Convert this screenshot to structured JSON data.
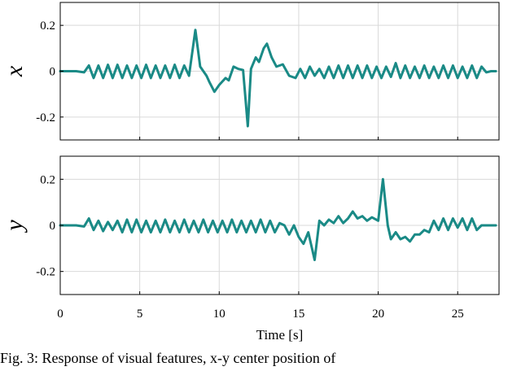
{
  "chart_data": [
    {
      "type": "line",
      "ylabel": "x",
      "xlabel": "",
      "xlim": [
        0,
        27.6
      ],
      "ylim": [
        -0.3,
        0.3
      ],
      "xticks": [
        0,
        5,
        10,
        15,
        20,
        25
      ],
      "yticks": [
        -0.2,
        0,
        0.2
      ],
      "ytick_labels": [
        "-0.2",
        "0",
        "0.2"
      ],
      "grid": true,
      "color": "#1a8a86",
      "series": [
        {
          "x": [
            0,
            1.0,
            1.5,
            1.8,
            2.1,
            2.4,
            2.7,
            3.0,
            3.3,
            3.6,
            3.9,
            4.2,
            4.5,
            4.8,
            5.1,
            5.4,
            5.7,
            6.0,
            6.3,
            6.6,
            6.9,
            7.2,
            7.5,
            7.8,
            8.1,
            8.5,
            8.8,
            9.2,
            9.4,
            9.7,
            10.0,
            10.4,
            10.6,
            10.9,
            11.2,
            11.5,
            11.8,
            12.0,
            12.3,
            12.5,
            12.8,
            13.0,
            13.3,
            13.6,
            14.0,
            14.4,
            14.8,
            15.1,
            15.4,
            15.7,
            16.0,
            16.3,
            16.6,
            16.9,
            17.2,
            17.5,
            17.8,
            18.1,
            18.4,
            18.7,
            19.0,
            19.3,
            19.6,
            19.9,
            20.2,
            20.5,
            20.8,
            21.1,
            21.4,
            21.7,
            22.0,
            22.3,
            22.6,
            22.9,
            23.2,
            23.5,
            23.8,
            24.1,
            24.4,
            24.7,
            25.0,
            25.3,
            25.6,
            25.9,
            26.2,
            26.5,
            26.8,
            27.1,
            27.4
          ],
          "y": [
            0,
            0,
            -0.005,
            0.025,
            -0.03,
            0.025,
            -0.03,
            0.028,
            -0.03,
            0.028,
            -0.03,
            0.025,
            -0.03,
            0.025,
            -0.03,
            0.028,
            -0.03,
            0.025,
            -0.03,
            0.025,
            -0.03,
            0.028,
            -0.03,
            0.025,
            -0.02,
            0.18,
            0.02,
            -0.02,
            -0.05,
            -0.09,
            -0.06,
            -0.03,
            -0.04,
            0.02,
            0.01,
            0.005,
            -0.24,
            0.01,
            0.06,
            0.04,
            0.1,
            0.12,
            0.06,
            0.02,
            0.03,
            -0.02,
            -0.03,
            0.01,
            -0.03,
            0.02,
            -0.02,
            0.01,
            -0.03,
            0.02,
            -0.03,
            0.025,
            -0.03,
            0.025,
            -0.03,
            0.025,
            -0.03,
            0.025,
            -0.03,
            0.02,
            -0.03,
            0.02,
            -0.025,
            0.035,
            -0.03,
            0.025,
            -0.03,
            0.02,
            -0.03,
            0.025,
            -0.03,
            0.02,
            -0.03,
            0.025,
            -0.03,
            0.025,
            -0.03,
            0.02,
            -0.03,
            0.025,
            -0.03,
            0.02,
            -0.005,
            0,
            0
          ]
        }
      ]
    },
    {
      "type": "line",
      "ylabel": "y",
      "xlabel": "Time [s]",
      "xlim": [
        0,
        27.6
      ],
      "ylim": [
        -0.3,
        0.3
      ],
      "xticks": [
        0,
        5,
        10,
        15,
        20,
        25
      ],
      "yticks": [
        -0.2,
        0,
        0.2
      ],
      "ytick_labels": [
        "-0.2",
        "0",
        "0.2"
      ],
      "xtick_labels": [
        "0",
        "5",
        "10",
        "15",
        "20",
        "25"
      ],
      "grid": true,
      "color": "#1a8a86",
      "series": [
        {
          "x": [
            0,
            1.0,
            1.5,
            1.8,
            2.1,
            2.4,
            2.7,
            3.0,
            3.3,
            3.6,
            3.9,
            4.2,
            4.5,
            4.8,
            5.1,
            5.4,
            5.7,
            6.0,
            6.3,
            6.6,
            6.9,
            7.2,
            7.5,
            7.8,
            8.1,
            8.4,
            8.7,
            9.0,
            9.3,
            9.6,
            9.9,
            10.2,
            10.5,
            10.8,
            11.1,
            11.4,
            11.7,
            12.0,
            12.3,
            12.6,
            12.9,
            13.2,
            13.5,
            13.8,
            14.1,
            14.4,
            14.7,
            15.0,
            15.3,
            15.6,
            16.0,
            16.3,
            16.6,
            16.9,
            17.2,
            17.5,
            17.8,
            18.1,
            18.4,
            18.7,
            19.0,
            19.3,
            19.6,
            20.0,
            20.3,
            20.6,
            20.8,
            21.1,
            21.4,
            21.7,
            22.0,
            22.3,
            22.6,
            22.9,
            23.2,
            23.5,
            23.8,
            24.1,
            24.4,
            24.7,
            25.0,
            25.3,
            25.6,
            25.9,
            26.2,
            26.5,
            26.8,
            27.1,
            27.4
          ],
          "y": [
            0,
            0,
            -0.005,
            0.03,
            -0.02,
            0.02,
            -0.025,
            0.015,
            -0.02,
            0.02,
            -0.03,
            0.025,
            -0.03,
            0.025,
            -0.03,
            0.02,
            -0.03,
            0.02,
            -0.03,
            0.025,
            -0.03,
            0.02,
            -0.03,
            0.025,
            -0.03,
            0.02,
            -0.03,
            0.025,
            -0.03,
            0.02,
            -0.03,
            0.02,
            -0.03,
            0.025,
            -0.03,
            0.02,
            -0.03,
            0.02,
            -0.03,
            0.025,
            -0.03,
            0.02,
            -0.03,
            0.01,
            0.0,
            -0.04,
            0.0,
            -0.05,
            -0.08,
            -0.03,
            -0.15,
            0.02,
            0.0,
            0.025,
            0.01,
            0.04,
            0.01,
            0.03,
            0.06,
            0.03,
            0.04,
            0.02,
            0.035,
            0.02,
            0.2,
            0.0,
            -0.06,
            -0.03,
            -0.06,
            -0.05,
            -0.07,
            -0.04,
            -0.04,
            -0.02,
            -0.03,
            0.02,
            -0.02,
            0.03,
            -0.02,
            0.03,
            -0.01,
            0.03,
            -0.02,
            0.03,
            -0.02,
            0.0,
            0.0,
            0.0,
            0.0
          ]
        }
      ]
    }
  ],
  "caption": "Fig. 3: Response of visual features, x-y center position of"
}
